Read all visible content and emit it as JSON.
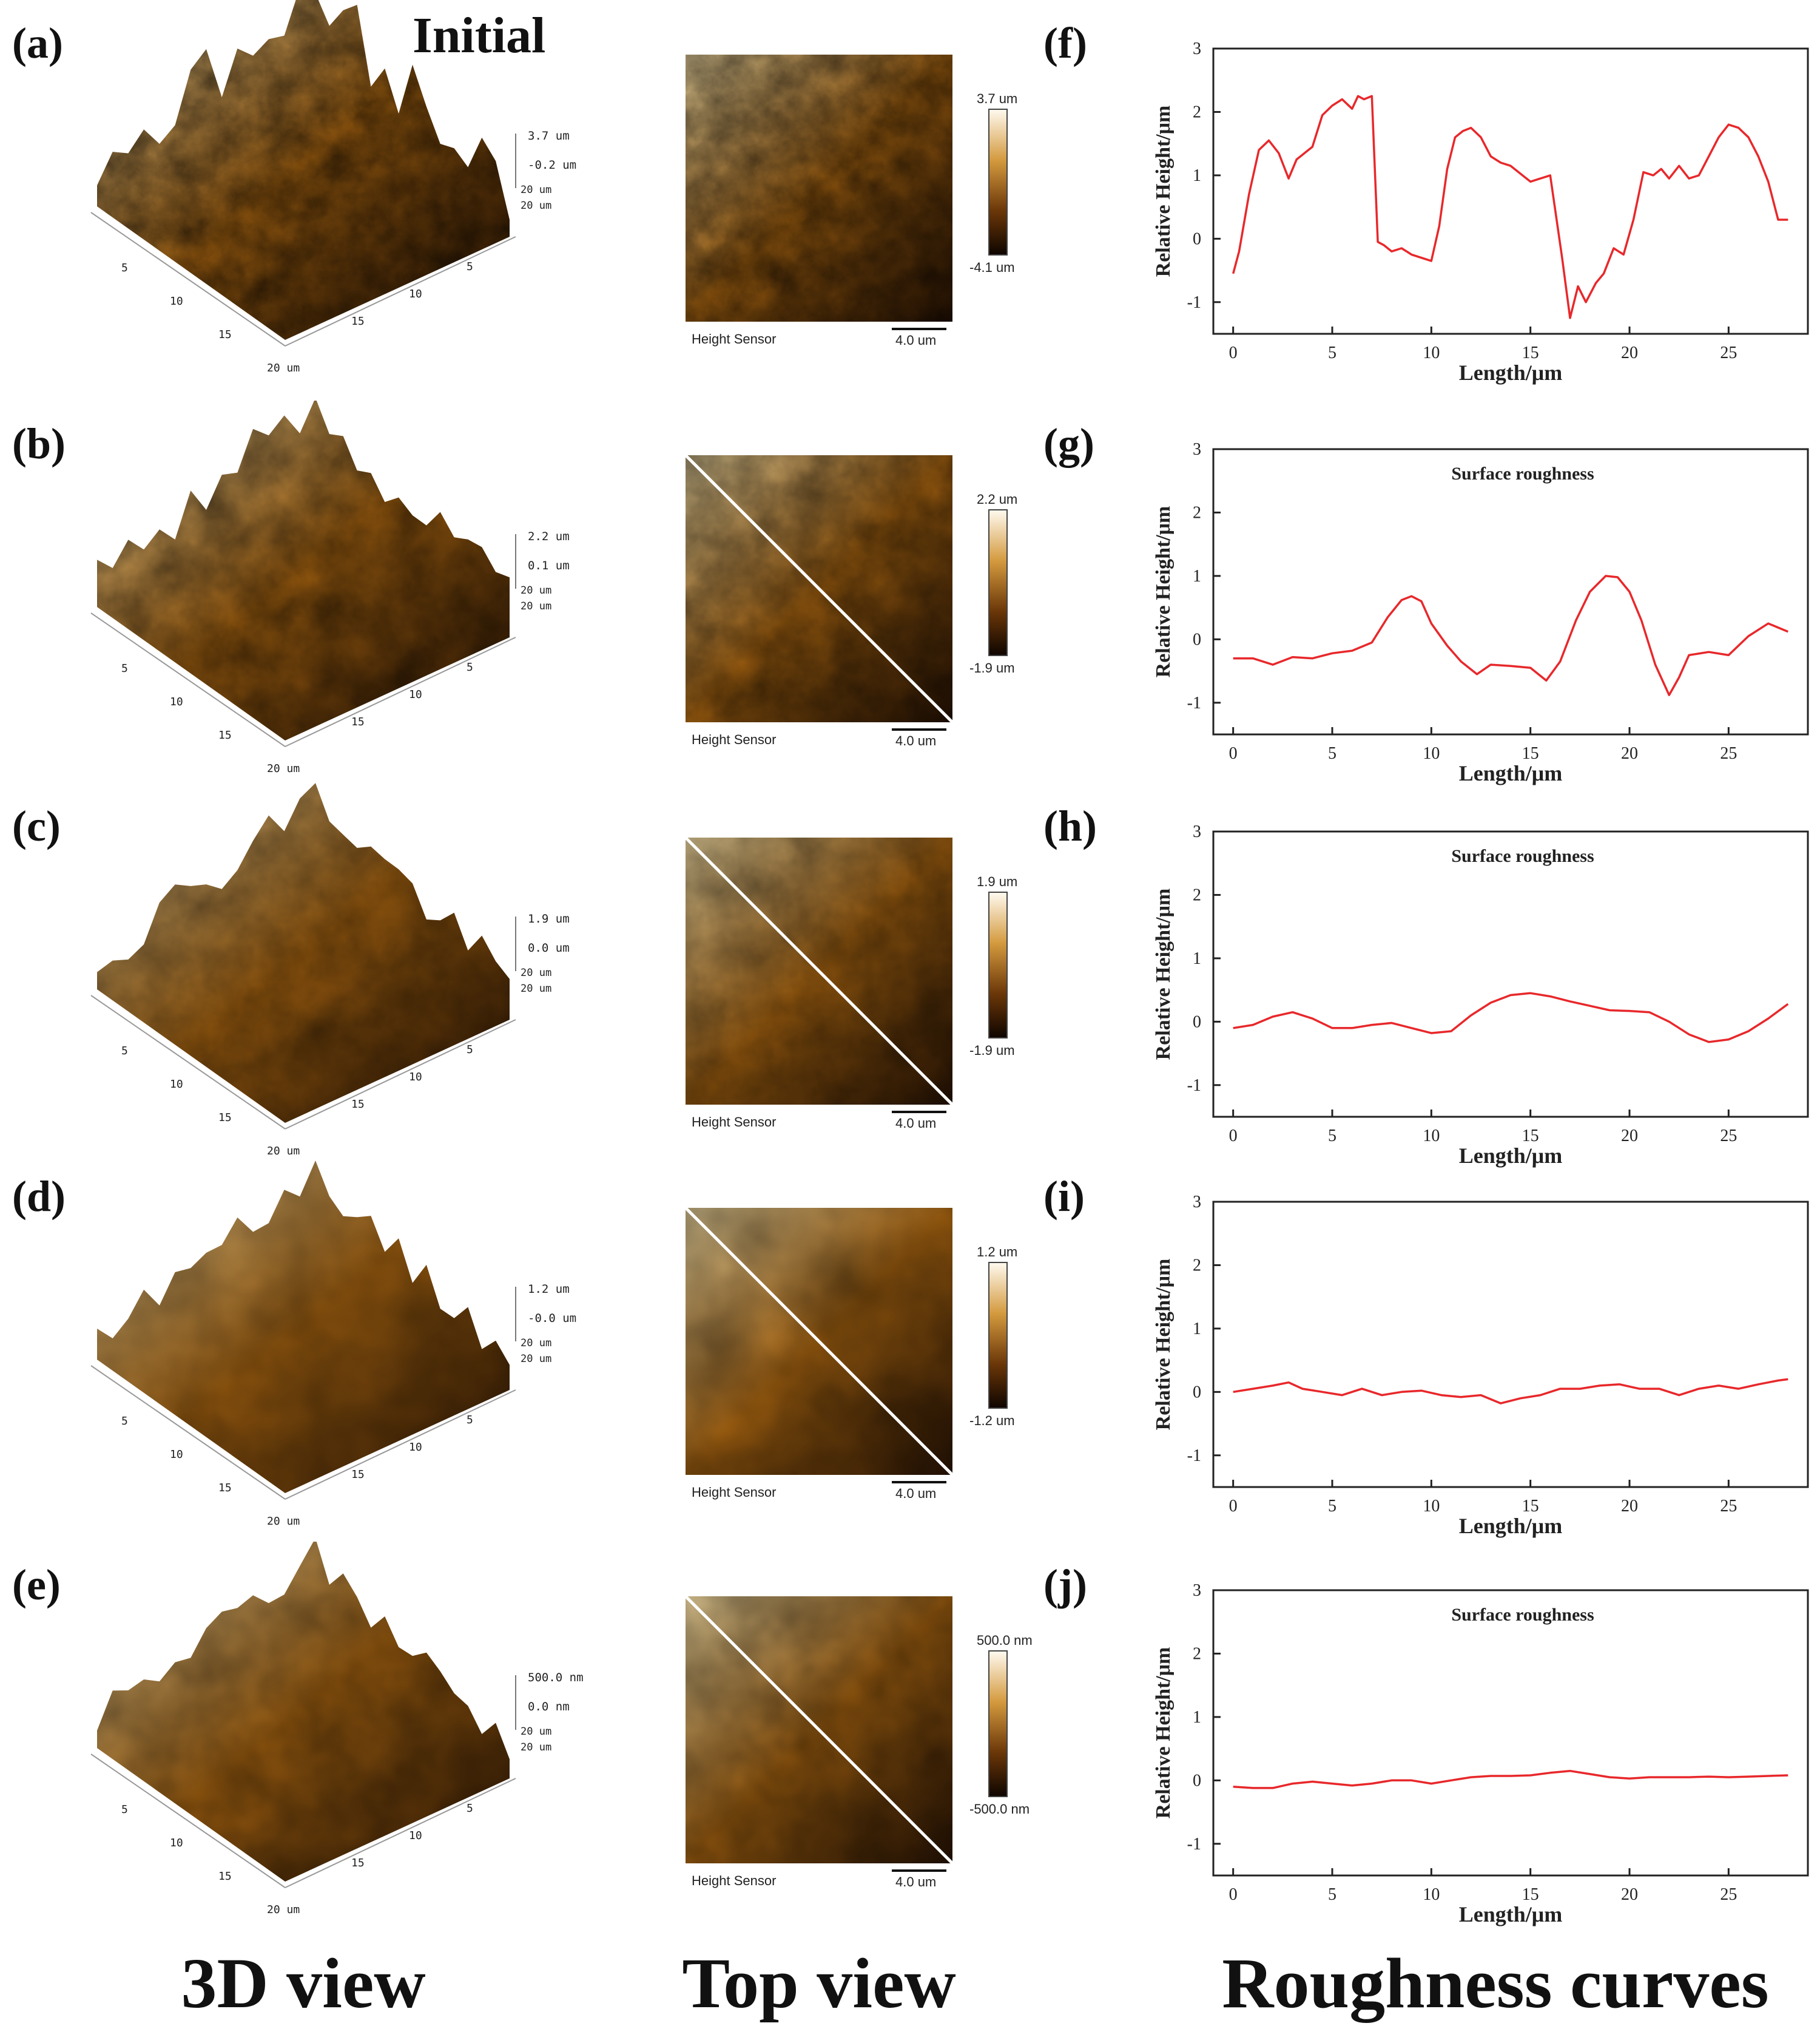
{
  "initial_label": "Initial",
  "column_titles": [
    "3D view",
    "Top view",
    "Roughness curves"
  ],
  "height_sensor_label": "Height Sensor",
  "scale_bar_label": "4.0 um",
  "colors": {
    "curve": "#e8282b",
    "afm_light": "#f6dfa6",
    "afm_mid": "#b36b12",
    "afm_dark": "#2a1404"
  },
  "rows": [
    {
      "label_3d": "(a)",
      "label_curve": "(f)",
      "z_max": "3.7 um",
      "z_mid": "-0.2 um",
      "z_min_top": "-4.1 um",
      "color_max": "3.7 um",
      "color_min": "-4.1 um",
      "diagonal": false,
      "roughness": 1.0
    },
    {
      "label_3d": "(b)",
      "label_curve": "(g)",
      "z_max": "2.2 um",
      "z_mid": "0.1 um",
      "z_min_top": "-1.9 um",
      "color_max": "2.2 um",
      "color_min": "-1.9 um",
      "diagonal": true,
      "roughness": 0.7
    },
    {
      "label_3d": "(c)",
      "label_curve": "(h)",
      "z_max": "1.9 um",
      "z_mid": "0.0 um",
      "z_min_top": "-1.9 um",
      "color_max": "1.9 um",
      "color_min": "-1.9 um",
      "diagonal": true,
      "roughness": 0.5
    },
    {
      "label_3d": "(d)",
      "label_curve": "(i)",
      "z_max": "1.2 um",
      "z_mid": "-0.0 um",
      "z_min_top": "-1.2 um",
      "color_max": "1.2 um",
      "color_min": "-1.2 um",
      "diagonal": true,
      "roughness": 0.25
    },
    {
      "label_3d": "(e)",
      "label_curve": "(j)",
      "z_max": "500.0 nm",
      "z_mid": "0.0 nm",
      "z_min_top": "-500.0 nm",
      "color_max": "500.0 nm",
      "color_min": "-500.0 nm",
      "diagonal": true,
      "roughness": 0.4
    }
  ],
  "axis_3d": {
    "left_ticks": [
      "5",
      "10",
      "15",
      "20 um"
    ],
    "right_ticks": [
      "5",
      "10",
      "15",
      "20 um"
    ],
    "z_extra": [
      "20 um",
      "20 um"
    ]
  },
  "chart_data": [
    {
      "type": "line",
      "panel": "(f)",
      "title": "",
      "xlabel": "Length/μm",
      "ylabel": "Relative Height/μm",
      "xlim": [
        -1,
        29
      ],
      "ylim": [
        -1.5,
        3
      ],
      "xticks": [
        "0",
        "5",
        "10",
        "15",
        "20",
        "25"
      ],
      "yticks": [
        "-1",
        "0",
        "1",
        "2",
        "3"
      ],
      "x": [
        0,
        0.3,
        0.8,
        1.3,
        1.8,
        2.3,
        2.8,
        3.2,
        3.6,
        4.0,
        4.5,
        5.0,
        5.5,
        6.0,
        6.3,
        6.6,
        7.0,
        7.3,
        7.6,
        8.0,
        8.5,
        9.0,
        9.5,
        10.0,
        10.4,
        10.8,
        11.2,
        11.6,
        12.0,
        12.5,
        13.0,
        13.5,
        14.0,
        15.0,
        16.0,
        16.6,
        17.0,
        17.4,
        17.8,
        18.3,
        18.7,
        19.2,
        19.7,
        20.2,
        20.7,
        21.2,
        21.6,
        22.0,
        22.5,
        23.0,
        23.5,
        24.0,
        24.5,
        25.0,
        25.5,
        26.0,
        26.5,
        27.0,
        27.5,
        28.0
      ],
      "series": [
        {
          "name": "roughness",
          "values": [
            -0.55,
            -0.2,
            0.7,
            1.4,
            1.55,
            1.35,
            0.95,
            1.25,
            1.35,
            1.45,
            1.95,
            2.1,
            2.2,
            2.05,
            2.25,
            2.2,
            2.25,
            -0.05,
            -0.1,
            -0.2,
            -0.15,
            -0.25,
            -0.3,
            -0.35,
            0.2,
            1.1,
            1.6,
            1.7,
            1.75,
            1.6,
            1.3,
            1.2,
            1.15,
            0.9,
            1.0,
            -0.3,
            -1.25,
            -0.75,
            -1.0,
            -0.7,
            -0.55,
            -0.15,
            -0.25,
            0.3,
            1.05,
            1.0,
            1.1,
            0.95,
            1.15,
            0.95,
            1.0,
            1.3,
            1.6,
            1.8,
            1.75,
            1.6,
            1.3,
            0.9,
            0.3,
            0.3
          ]
        }
      ]
    },
    {
      "type": "line",
      "panel": "(g)",
      "title": "Surface roughness",
      "xlabel": "Length/μm",
      "ylabel": "Relative Height/μm",
      "xlim": [
        -1,
        29
      ],
      "ylim": [
        -1.5,
        3
      ],
      "xticks": [
        "0",
        "5",
        "10",
        "15",
        "20",
        "25"
      ],
      "yticks": [
        "-1",
        "0",
        "1",
        "2",
        "3"
      ],
      "x": [
        0,
        1,
        2,
        3,
        4,
        5,
        6,
        7,
        7.8,
        8.5,
        9,
        9.5,
        10,
        10.8,
        11.5,
        12.3,
        13,
        14,
        15,
        15.8,
        16.5,
        17.3,
        18,
        18.8,
        19.4,
        20,
        20.6,
        21.3,
        22,
        22.5,
        23,
        24,
        25,
        26,
        27,
        28
      ],
      "series": [
        {
          "name": "roughness",
          "values": [
            -0.3,
            -0.3,
            -0.4,
            -0.28,
            -0.3,
            -0.22,
            -0.18,
            -0.05,
            0.35,
            0.62,
            0.68,
            0.6,
            0.25,
            -0.1,
            -0.35,
            -0.55,
            -0.4,
            -0.42,
            -0.45,
            -0.65,
            -0.35,
            0.3,
            0.75,
            1.0,
            0.98,
            0.75,
            0.3,
            -0.4,
            -0.88,
            -0.6,
            -0.25,
            -0.2,
            -0.25,
            0.05,
            0.25,
            0.12
          ]
        }
      ]
    },
    {
      "type": "line",
      "panel": "(h)",
      "title": "Surface roughness",
      "xlabel": "Length/μm",
      "ylabel": "Relative Height/μm",
      "xlim": [
        -1,
        29
      ],
      "ylim": [
        -1.5,
        3
      ],
      "xticks": [
        "0",
        "5",
        "10",
        "15",
        "20",
        "25"
      ],
      "yticks": [
        "-1",
        "0",
        "1",
        "2",
        "3"
      ],
      "x": [
        0,
        1,
        2,
        3,
        4,
        5,
        6,
        7,
        8,
        9,
        10,
        11,
        12,
        13,
        14,
        15,
        16,
        17,
        18,
        19,
        20,
        21,
        22,
        23,
        24,
        25,
        26,
        27,
        28
      ],
      "series": [
        {
          "name": "roughness",
          "values": [
            -0.1,
            -0.05,
            0.08,
            0.15,
            0.05,
            -0.1,
            -0.1,
            -0.05,
            -0.02,
            -0.1,
            -0.18,
            -0.15,
            0.1,
            0.3,
            0.42,
            0.45,
            0.4,
            0.32,
            0.25,
            0.18,
            0.17,
            0.15,
            0.0,
            -0.2,
            -0.32,
            -0.28,
            -0.15,
            0.05,
            0.28
          ]
        }
      ]
    },
    {
      "type": "line",
      "panel": "(i)",
      "title": "",
      "xlabel": "Length/μm",
      "ylabel": "Relative Height/μm",
      "xlim": [
        -1,
        29
      ],
      "ylim": [
        -1.5,
        3
      ],
      "xticks": [
        "0",
        "5",
        "10",
        "15",
        "20",
        "25"
      ],
      "yticks": [
        "-1",
        "0",
        "1",
        "2",
        "3"
      ],
      "x": [
        0,
        1,
        2,
        2.8,
        3.5,
        4.5,
        5.5,
        6.5,
        7.5,
        8.5,
        9.5,
        10.5,
        11.5,
        12.5,
        13.5,
        14.5,
        15.5,
        16.5,
        17.5,
        18.5,
        19.5,
        20.5,
        21.5,
        22.5,
        23.5,
        24.5,
        25.5,
        26.5,
        27.5,
        28
      ],
      "series": [
        {
          "name": "roughness",
          "values": [
            0.0,
            0.05,
            0.1,
            0.15,
            0.05,
            0.0,
            -0.05,
            0.05,
            -0.05,
            0.0,
            0.02,
            -0.05,
            -0.08,
            -0.05,
            -0.18,
            -0.1,
            -0.05,
            0.05,
            0.05,
            0.1,
            0.12,
            0.05,
            0.05,
            -0.05,
            0.05,
            0.1,
            0.05,
            0.12,
            0.18,
            0.2
          ]
        }
      ]
    },
    {
      "type": "line",
      "panel": "(j)",
      "title": "Surface roughness",
      "xlabel": "Length/μm",
      "ylabel": "Relative Height/μm",
      "xlim": [
        -1,
        29
      ],
      "ylim": [
        -1.5,
        3
      ],
      "xticks": [
        "0",
        "5",
        "10",
        "15",
        "20",
        "25"
      ],
      "yticks": [
        "-1",
        "0",
        "1",
        "2",
        "3"
      ],
      "x": [
        0,
        1,
        2,
        3,
        4,
        5,
        6,
        7,
        8,
        9,
        10,
        11,
        12,
        13,
        14,
        15,
        16,
        17,
        18,
        19,
        20,
        21,
        22,
        23,
        24,
        25,
        26,
        27,
        28
      ],
      "series": [
        {
          "name": "roughness",
          "values": [
            -0.1,
            -0.12,
            -0.12,
            -0.05,
            -0.02,
            -0.05,
            -0.08,
            -0.05,
            0.0,
            0.0,
            -0.05,
            0.0,
            0.05,
            0.07,
            0.07,
            0.08,
            0.12,
            0.15,
            0.1,
            0.05,
            0.03,
            0.05,
            0.05,
            0.05,
            0.06,
            0.05,
            0.06,
            0.07,
            0.08
          ]
        }
      ]
    }
  ]
}
